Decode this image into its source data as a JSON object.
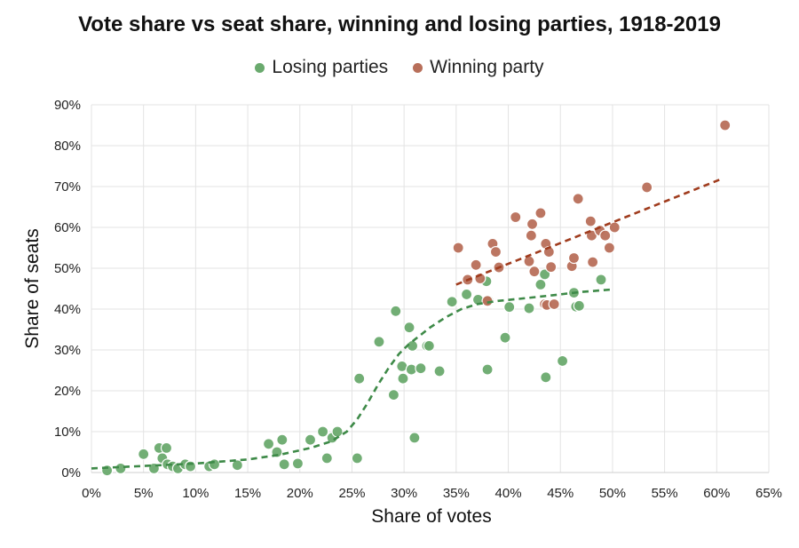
{
  "chart_data": {
    "type": "scatter",
    "title": "Vote share vs seat share, winning and losing parties, 1918-2019",
    "xlabel": "Share of votes",
    "ylabel": "Share of seats",
    "xlim": [
      0,
      65
    ],
    "ylim": [
      0,
      90
    ],
    "x_ticks": [
      "0%",
      "5%",
      "10%",
      "15%",
      "20%",
      "25%",
      "30%",
      "35%",
      "40%",
      "45%",
      "50%",
      "55%",
      "60%",
      "65%"
    ],
    "y_ticks": [
      "0%",
      "10%",
      "20%",
      "30%",
      "40%",
      "50%",
      "60%",
      "70%",
      "80%",
      "90%"
    ],
    "grid": true,
    "legend_position": "top",
    "series": [
      {
        "name": "Losing parties",
        "color": "#6aaa6e",
        "points": [
          [
            1.5,
            0.5
          ],
          [
            2.8,
            1
          ],
          [
            5,
            4.5
          ],
          [
            6,
            1
          ],
          [
            6.5,
            6
          ],
          [
            6.8,
            3.5
          ],
          [
            7.2,
            6
          ],
          [
            7.3,
            2
          ],
          [
            7.8,
            1.5
          ],
          [
            8.3,
            1
          ],
          [
            9,
            2
          ],
          [
            9.5,
            1.5
          ],
          [
            11.3,
            1.5
          ],
          [
            11.8,
            2
          ],
          [
            14,
            1.8
          ],
          [
            17,
            7
          ],
          [
            17.8,
            5
          ],
          [
            18.3,
            8
          ],
          [
            18.5,
            2
          ],
          [
            19.8,
            2.2
          ],
          [
            21,
            8
          ],
          [
            22.2,
            10
          ],
          [
            22.6,
            3.5
          ],
          [
            23.1,
            8.5
          ],
          [
            23.6,
            10
          ],
          [
            25.5,
            3.5
          ],
          [
            25.7,
            23
          ],
          [
            27.6,
            32
          ],
          [
            29,
            19
          ],
          [
            29.2,
            39.5
          ],
          [
            29.8,
            26
          ],
          [
            29.9,
            23
          ],
          [
            30.5,
            35.5
          ],
          [
            30.7,
            25.2
          ],
          [
            30.8,
            31
          ],
          [
            31,
            8.5
          ],
          [
            31.6,
            25.5
          ],
          [
            32.2,
            31
          ],
          [
            32.4,
            31
          ],
          [
            33.4,
            24.8
          ],
          [
            34.6,
            41.8
          ],
          [
            36,
            43.6
          ],
          [
            37.1,
            42.3
          ],
          [
            37.9,
            46.8
          ],
          [
            38,
            25.2
          ],
          [
            38.1,
            42.1
          ],
          [
            39.7,
            33
          ],
          [
            40.1,
            40.5
          ],
          [
            42,
            40.2
          ],
          [
            43.1,
            46
          ],
          [
            43.5,
            48.5
          ],
          [
            43.6,
            23.3
          ],
          [
            45.2,
            27.3
          ],
          [
            46.3,
            44
          ],
          [
            46.5,
            40.6
          ],
          [
            46.8,
            40.8
          ],
          [
            48.9,
            47.2
          ]
        ]
      },
      {
        "name": "Winning party",
        "color": "#b86f5a",
        "points": [
          [
            35.2,
            55
          ],
          [
            36.1,
            47.2
          ],
          [
            36.9,
            50.8
          ],
          [
            37.3,
            47.5
          ],
          [
            38,
            42
          ],
          [
            38.5,
            56
          ],
          [
            38.8,
            54
          ],
          [
            39.1,
            50.2
          ],
          [
            40.7,
            62.5
          ],
          [
            42,
            51.7
          ],
          [
            42.2,
            58
          ],
          [
            42.3,
            60.8
          ],
          [
            42.5,
            49.2
          ],
          [
            43.1,
            63.5
          ],
          [
            43.5,
            41.2
          ],
          [
            43.6,
            56
          ],
          [
            43.7,
            41
          ],
          [
            43.9,
            54
          ],
          [
            44.1,
            50.3
          ],
          [
            44.4,
            41.2
          ],
          [
            46.1,
            50.5
          ],
          [
            46.3,
            52.5
          ],
          [
            46.7,
            67
          ],
          [
            47.9,
            61.5
          ],
          [
            48,
            58
          ],
          [
            48.1,
            51.5
          ],
          [
            48.8,
            59.2
          ],
          [
            49.3,
            58
          ],
          [
            49.7,
            55
          ],
          [
            50.2,
            60
          ],
          [
            53.3,
            69.8
          ],
          [
            60.8,
            85
          ]
        ]
      }
    ],
    "trendlines": [
      {
        "name": "Losing parties trend",
        "color": "#3e8a48",
        "points": [
          [
            0,
            1
          ],
          [
            5,
            1.6
          ],
          [
            10,
            2.2
          ],
          [
            15,
            3.2
          ],
          [
            18,
            4.3
          ],
          [
            21,
            6
          ],
          [
            23,
            7.6
          ],
          [
            24.5,
            10
          ],
          [
            25.5,
            13
          ],
          [
            26.5,
            17
          ],
          [
            27.5,
            21.5
          ],
          [
            28.5,
            25.5
          ],
          [
            29.5,
            29
          ],
          [
            30.5,
            31.5
          ],
          [
            31.5,
            33.5
          ],
          [
            32.5,
            35.5
          ],
          [
            34,
            38
          ],
          [
            35.5,
            40
          ],
          [
            37,
            41.2
          ],
          [
            39,
            42
          ],
          [
            41,
            42.5
          ],
          [
            44,
            43.3
          ],
          [
            47,
            44.2
          ],
          [
            50,
            44.8
          ]
        ]
      },
      {
        "name": "Winning party trend",
        "color": "#a03c1e",
        "points": [
          [
            35,
            46
          ],
          [
            60.6,
            72
          ]
        ]
      }
    ]
  }
}
